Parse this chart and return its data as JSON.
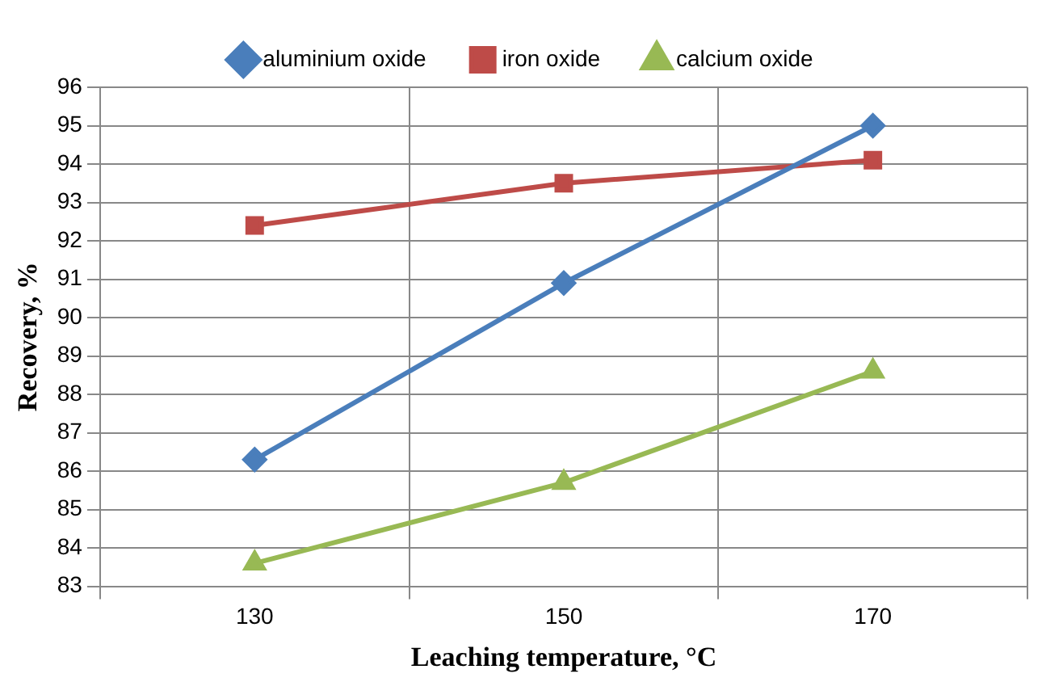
{
  "chart_data": {
    "type": "line",
    "xlabel": "Leaching temperature, °C",
    "ylabel": "Recovery, %",
    "categories": [
      "130",
      "150",
      "170"
    ],
    "series": [
      {
        "name": "aluminium oxide",
        "color": "#4a7ebb",
        "marker": "diamond",
        "values": [
          86.3,
          90.9,
          95.0
        ]
      },
      {
        "name": "iron oxide",
        "color": "#be4b48",
        "marker": "square",
        "values": [
          92.4,
          93.5,
          94.1
        ]
      },
      {
        "name": "calcium oxide",
        "color": "#98b954",
        "marker": "triangle",
        "values": [
          83.6,
          85.7,
          88.6
        ]
      }
    ],
    "ylim": [
      83,
      96
    ],
    "yticks": [
      83,
      84,
      85,
      86,
      87,
      88,
      89,
      90,
      91,
      92,
      93,
      94,
      95,
      96
    ],
    "grid": true,
    "legend": "top",
    "line_style": "solid"
  }
}
